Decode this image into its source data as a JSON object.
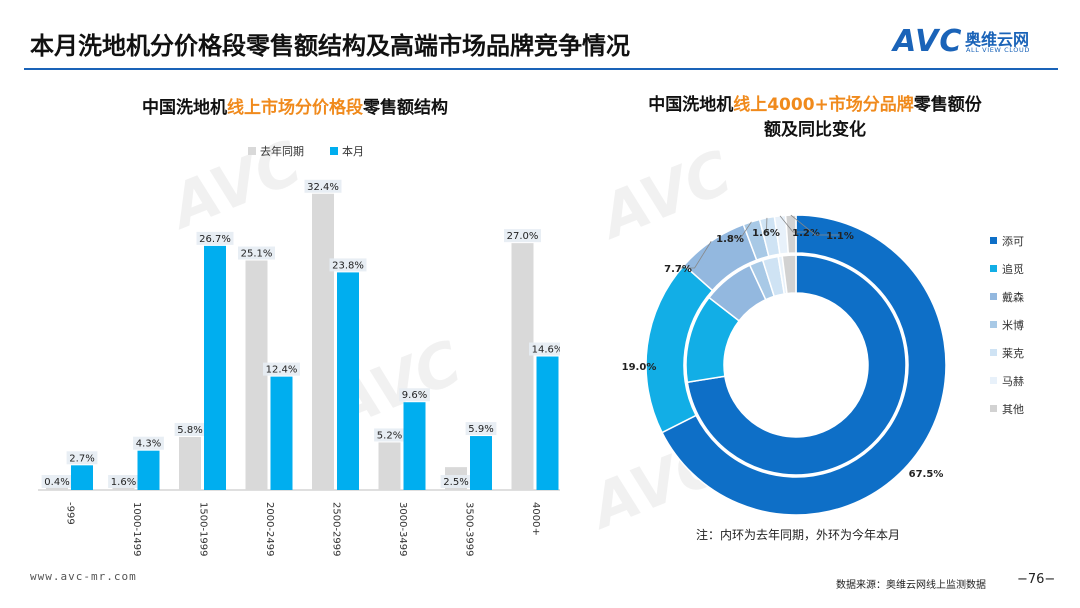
{
  "header": {
    "title": "本月洗地机分价格段零售额结构及高端市场品牌竞争情况",
    "logo_mark": "AVC",
    "logo_cn": "奥维云网",
    "logo_en": "ALL VIEW CLOUD"
  },
  "left_chart": {
    "title_pre": "中国洗地机",
    "title_hl": "线上市场分价格段",
    "title_post": "零售额结构"
  },
  "right_chart": {
    "title_line1_pre": "中国洗地机",
    "title_line1_hl": "线上4000+市场分品牌",
    "title_line1_post": "零售额份",
    "title_line2": "额及同比变化",
    "note": "注：内环为去年同期，外环为今年本月"
  },
  "footer": {
    "url": "www.avc-mr.com",
    "source": "数据来源：奥维云网线上监测数据",
    "page": "−76−"
  },
  "colors": {
    "last_year": "#d9d9d9",
    "this_month": "#00aeef",
    "brand": "#1a63b8",
    "highlight": "#f08a1c"
  },
  "chart_data": [
    {
      "type": "bar",
      "categories": [
        "-999",
        "1000-1499",
        "1500-1999",
        "2000-2499",
        "2500-2999",
        "3000-3499",
        "3500-3999",
        "4000+"
      ],
      "series": [
        {
          "name": "去年同期",
          "values": [
            0.4,
            1.6,
            5.8,
            25.1,
            32.4,
            5.2,
            2.5,
            27.0
          ],
          "labels": [
            "0.4%",
            "1.6%",
            "5.8%",
            "25.1%",
            "32.4%",
            "5.2%",
            "2.5%",
            "27.0%"
          ]
        },
        {
          "name": "本月",
          "values": [
            2.7,
            4.3,
            26.7,
            12.4,
            23.8,
            9.6,
            5.9,
            14.6
          ],
          "labels": [
            "2.7%",
            "4.3%",
            "26.7%",
            "12.4%",
            "23.8%",
            "9.6%",
            "5.9%",
            "14.6%"
          ]
        }
      ],
      "ylim": [
        0,
        35
      ],
      "grid": false,
      "legend": "top"
    },
    {
      "type": "pie",
      "style": "double-donut",
      "categories": [
        "添可",
        "追觅",
        "戴森",
        "米博",
        "莱克",
        "马赫",
        "其他"
      ],
      "colors": [
        "#0e6fc7",
        "#12aee6",
        "#93b8df",
        "#a8c9e6",
        "#cfe3f4",
        "#e8f1fa",
        "#d2d2d2"
      ],
      "series": [
        {
          "name": "外环",
          "values": [
            67.5,
            19.0,
            7.7,
            1.8,
            1.6,
            1.2,
            1.1
          ],
          "labels": [
            "67.5%",
            "19.0%",
            "7.7%",
            "1.8%",
            "1.6%",
            "1.2%",
            "1.1%"
          ]
        },
        {
          "name": "内环",
          "values": [
            72.5,
            13.0,
            7.6,
            2.0,
            2.3,
            0.6,
            2.0
          ]
        }
      ],
      "legend": "right"
    }
  ]
}
